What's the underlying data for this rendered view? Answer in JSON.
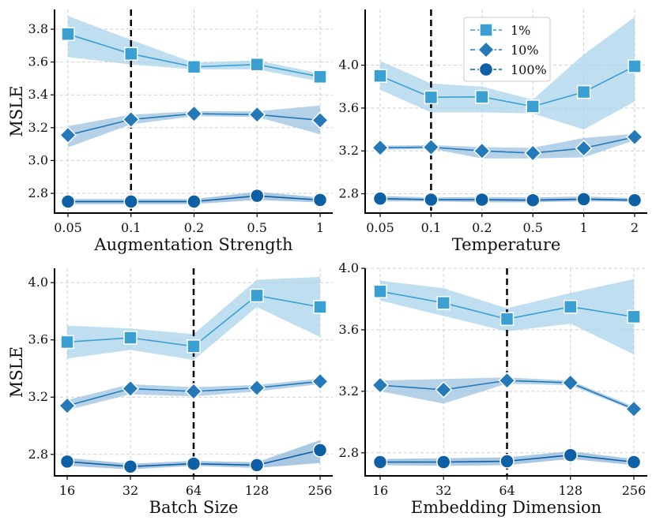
{
  "colors": {
    "s1": "#3a9fd1",
    "s10": "#2479b8",
    "s100": "#0d5fa6",
    "band1": "#a9d4ec",
    "band10": "#9ec3e1",
    "band100": "#8fb5da"
  },
  "legend": {
    "items": [
      {
        "label": "1%",
        "marker": "square",
        "color": "#3a9fd1"
      },
      {
        "label": "10%",
        "marker": "diamond",
        "color": "#2479b8"
      },
      {
        "label": "100%",
        "marker": "circle",
        "color": "#0d5fa6"
      }
    ]
  },
  "chart_data": [
    {
      "type": "line",
      "xlabel": "Augmentation Strength",
      "ylabel": "MSLE",
      "categories": [
        "0.05",
        "0.1",
        "0.2",
        "0.5",
        "1"
      ],
      "ylim": [
        2.68,
        3.92
      ],
      "yticks": [
        "2.8",
        "3.0",
        "3.2",
        "3.4",
        "3.6",
        "3.8"
      ],
      "highlight_category": "0.1",
      "series": [
        {
          "name": "1%",
          "values": [
            3.77,
            3.65,
            3.57,
            3.585,
            3.51
          ],
          "lower": [
            3.63,
            3.585,
            3.555,
            3.555,
            3.48
          ],
          "upper": [
            3.88,
            3.735,
            3.595,
            3.61,
            3.53
          ]
        },
        {
          "name": "10%",
          "values": [
            3.155,
            3.25,
            3.285,
            3.28,
            3.245
          ],
          "lower": [
            3.08,
            3.22,
            3.27,
            3.265,
            3.16
          ],
          "upper": [
            3.21,
            3.28,
            3.3,
            3.3,
            3.335
          ]
        },
        {
          "name": "100%",
          "values": [
            2.75,
            2.75,
            2.75,
            2.785,
            2.76
          ],
          "lower": [
            2.735,
            2.735,
            2.735,
            2.76,
            2.745
          ],
          "upper": [
            2.765,
            2.765,
            2.765,
            2.81,
            2.775
          ]
        }
      ]
    },
    {
      "type": "line",
      "xlabel": "Temperature",
      "ylabel": "",
      "categories": [
        "0.05",
        "0.1",
        "0.2",
        "0.5",
        "1",
        "2"
      ],
      "ylim": [
        2.62,
        4.52
      ],
      "yticks": [
        "2.8",
        "3.2",
        "3.6",
        "4.0"
      ],
      "highlight_category": "0.1",
      "series": [
        {
          "name": "1%",
          "values": [
            3.9,
            3.7,
            3.705,
            3.615,
            3.75,
            3.99
          ],
          "lower": [
            3.77,
            3.56,
            3.56,
            3.55,
            3.4,
            3.66
          ],
          "upper": [
            4.04,
            3.83,
            3.8,
            3.68,
            4.1,
            4.45
          ]
        },
        {
          "name": "10%",
          "values": [
            3.23,
            3.235,
            3.2,
            3.18,
            3.225,
            3.33
          ],
          "lower": [
            3.21,
            3.22,
            3.13,
            3.13,
            3.14,
            3.3
          ],
          "upper": [
            3.25,
            3.255,
            3.235,
            3.23,
            3.32,
            3.36
          ]
        },
        {
          "name": "100%",
          "values": [
            2.755,
            2.745,
            2.745,
            2.74,
            2.75,
            2.74
          ],
          "lower": [
            2.73,
            2.73,
            2.72,
            2.72,
            2.73,
            2.725
          ],
          "upper": [
            2.78,
            2.765,
            2.77,
            2.765,
            2.775,
            2.76
          ]
        }
      ]
    },
    {
      "type": "line",
      "xlabel": "Batch Size",
      "ylabel": "MSLE",
      "categories": [
        "16",
        "32",
        "64",
        "128",
        "256"
      ],
      "ylim": [
        2.65,
        4.1
      ],
      "yticks": [
        "2.8",
        "3.2",
        "3.6",
        "4.0"
      ],
      "highlight_category": "64",
      "series": [
        {
          "name": "1%",
          "values": [
            3.585,
            3.615,
            3.555,
            3.91,
            3.83
          ],
          "lower": [
            3.47,
            3.53,
            3.46,
            3.83,
            3.62
          ],
          "upper": [
            3.7,
            3.68,
            3.64,
            4.02,
            4.04
          ]
        },
        {
          "name": "10%",
          "values": [
            3.14,
            3.26,
            3.24,
            3.265,
            3.31
          ],
          "lower": [
            3.11,
            3.22,
            3.205,
            3.24,
            3.29
          ],
          "upper": [
            3.18,
            3.29,
            3.27,
            3.285,
            3.33
          ]
        },
        {
          "name": "100%",
          "values": [
            2.75,
            2.715,
            2.735,
            2.725,
            2.83
          ],
          "lower": [
            2.72,
            2.695,
            2.72,
            2.705,
            2.74
          ],
          "upper": [
            2.775,
            2.735,
            2.755,
            2.745,
            2.9
          ]
        }
      ]
    },
    {
      "type": "line",
      "xlabel": "Embedding Dimension",
      "ylabel": "",
      "categories": [
        "16",
        "32",
        "64",
        "128",
        "256"
      ],
      "ylim": [
        2.65,
        4.0
      ],
      "yticks": [
        "2.8",
        "3.2",
        "3.6",
        "4.0"
      ],
      "highlight_category": "64",
      "series": [
        {
          "name": "1%",
          "values": [
            3.85,
            3.775,
            3.67,
            3.75,
            3.685
          ],
          "lower": [
            3.79,
            3.69,
            3.59,
            3.64,
            3.44
          ],
          "upper": [
            3.92,
            3.87,
            3.74,
            3.84,
            3.93
          ]
        },
        {
          "name": "10%",
          "values": [
            3.24,
            3.21,
            3.27,
            3.255,
            3.085
          ],
          "lower": [
            3.2,
            3.12,
            3.25,
            3.24,
            3.075
          ],
          "upper": [
            3.27,
            3.28,
            3.29,
            3.27,
            3.1
          ]
        },
        {
          "name": "100%",
          "values": [
            2.74,
            2.74,
            2.745,
            2.785,
            2.74
          ],
          "lower": [
            2.72,
            2.715,
            2.72,
            2.76,
            2.72
          ],
          "upper": [
            2.76,
            2.765,
            2.77,
            2.81,
            2.76
          ]
        }
      ]
    }
  ]
}
